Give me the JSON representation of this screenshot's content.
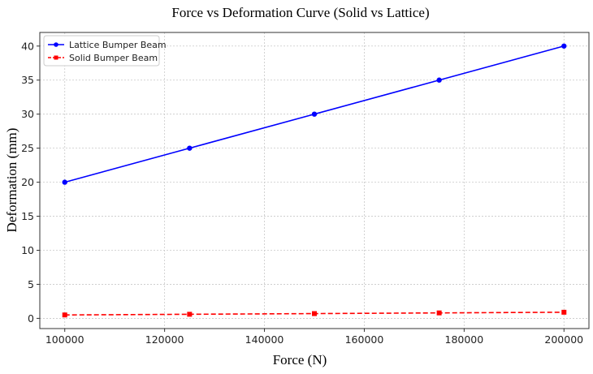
{
  "chart_data": {
    "type": "line",
    "title": "Force vs Deformation Curve (Solid vs Lattice)",
    "xlabel": "Force (N)",
    "ylabel": "Deformation (mm)",
    "x": [
      100000,
      125000,
      150000,
      175000,
      200000
    ],
    "xlim": [
      95000,
      205000
    ],
    "ylim": [
      -1.5,
      42
    ],
    "xticks": [
      100000,
      120000,
      140000,
      160000,
      180000,
      200000
    ],
    "yticks": [
      0,
      5,
      10,
      15,
      20,
      25,
      30,
      35,
      40
    ],
    "grid": true,
    "legend_position": "top-left",
    "series": [
      {
        "name": "Lattice Bumper Beam",
        "values": [
          20,
          25,
          30,
          35,
          40
        ],
        "color": "#0000ff",
        "marker": "circle",
        "line_style": "solid"
      },
      {
        "name": "Solid Bumper Beam",
        "values": [
          0.5,
          0.6,
          0.7,
          0.8,
          0.9
        ],
        "color": "#ff0000",
        "marker": "square",
        "line_style": "dashed"
      }
    ]
  }
}
